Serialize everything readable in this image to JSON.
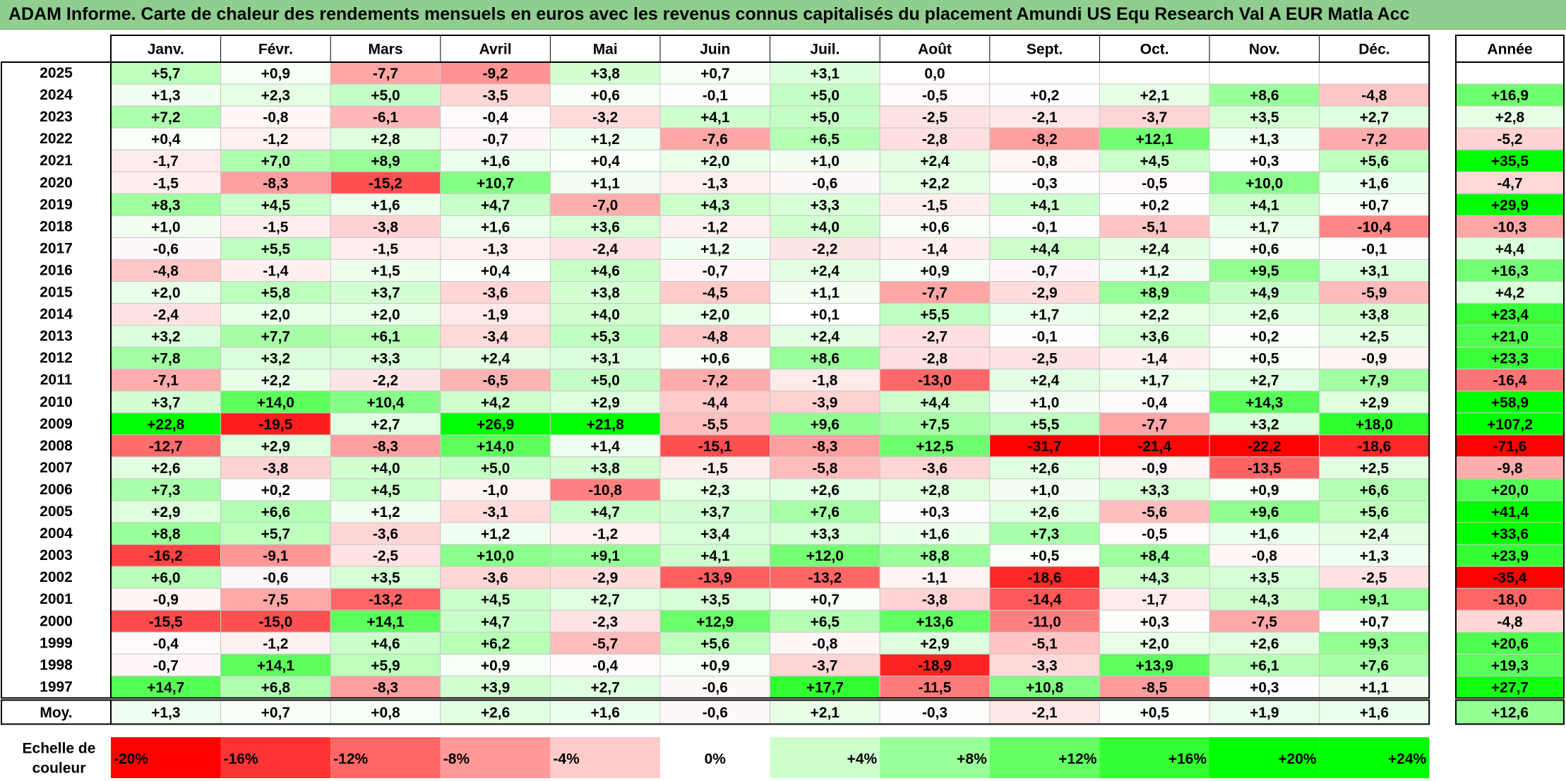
{
  "title": "ADAM Informe. Carte de chaleur des rendements mensuels en euros avec les revenus connus capitalisés du placement Amundi US Equ Research Val A EUR Matla Acc",
  "chart_data": {
    "type": "heatmap",
    "months": [
      "Janv.",
      "Févr.",
      "Mars",
      "Avril",
      "Mai",
      "Juin",
      "Juil.",
      "Août",
      "Sept.",
      "Oct.",
      "Nov.",
      "Déc."
    ],
    "annual_header": "Année",
    "rows": [
      {
        "year": "2025",
        "values": [
          5.7,
          0.9,
          -7.7,
          -9.2,
          3.8,
          0.7,
          3.1,
          0.0,
          null,
          null,
          null,
          null
        ],
        "annual": null
      },
      {
        "year": "2024",
        "values": [
          1.3,
          2.3,
          5.0,
          -3.5,
          0.6,
          -0.1,
          5.0,
          -0.5,
          0.2,
          2.1,
          8.6,
          -4.8
        ],
        "annual": 16.9
      },
      {
        "year": "2023",
        "values": [
          7.2,
          -0.8,
          -6.1,
          -0.4,
          -3.2,
          4.1,
          5.0,
          -2.5,
          -2.1,
          -3.7,
          3.5,
          2.7
        ],
        "annual": 2.8
      },
      {
        "year": "2022",
        "values": [
          0.4,
          -1.2,
          2.8,
          -0.7,
          1.2,
          -7.6,
          6.5,
          -2.8,
          -8.2,
          12.1,
          1.3,
          -7.2
        ],
        "annual": -5.2
      },
      {
        "year": "2021",
        "values": [
          -1.7,
          7.0,
          8.9,
          1.6,
          0.4,
          2.0,
          1.0,
          2.4,
          -0.8,
          4.5,
          0.3,
          5.6
        ],
        "annual": 35.5
      },
      {
        "year": "2020",
        "values": [
          -1.5,
          -8.3,
          -15.2,
          10.7,
          1.1,
          -1.3,
          -0.6,
          2.2,
          -0.3,
          -0.5,
          10.0,
          1.6
        ],
        "annual": -4.7
      },
      {
        "year": "2019",
        "values": [
          8.3,
          4.5,
          1.6,
          4.7,
          -7.0,
          4.3,
          3.3,
          -1.5,
          4.1,
          0.2,
          4.1,
          0.7
        ],
        "annual": 29.9
      },
      {
        "year": "2018",
        "values": [
          1.0,
          -1.5,
          -3.8,
          1.6,
          3.6,
          -1.2,
          4.0,
          0.6,
          -0.1,
          -5.1,
          1.7,
          -10.4
        ],
        "annual": -10.3
      },
      {
        "year": "2017",
        "values": [
          -0.6,
          5.5,
          -1.5,
          -1.3,
          -2.4,
          1.2,
          -2.2,
          -1.4,
          4.4,
          2.4,
          0.6,
          -0.1
        ],
        "annual": 4.4
      },
      {
        "year": "2016",
        "values": [
          -4.8,
          -1.4,
          1.5,
          0.4,
          4.6,
          -0.7,
          2.4,
          0.9,
          -0.7,
          1.2,
          9.5,
          3.1
        ],
        "annual": 16.3
      },
      {
        "year": "2015",
        "values": [
          2.0,
          5.8,
          3.7,
          -3.6,
          3.8,
          -4.5,
          1.1,
          -7.7,
          -2.9,
          8.9,
          4.9,
          -5.9
        ],
        "annual": 4.2
      },
      {
        "year": "2014",
        "values": [
          -2.4,
          2.0,
          2.0,
          -1.9,
          4.0,
          2.0,
          0.1,
          5.5,
          1.7,
          2.2,
          2.6,
          3.8
        ],
        "annual": 23.4
      },
      {
        "year": "2013",
        "values": [
          3.2,
          7.7,
          6.1,
          -3.4,
          5.3,
          -4.8,
          2.4,
          -2.7,
          -0.1,
          3.6,
          0.2,
          2.5
        ],
        "annual": 21.0
      },
      {
        "year": "2012",
        "values": [
          7.8,
          3.2,
          3.3,
          2.4,
          3.1,
          0.6,
          8.6,
          -2.8,
          -2.5,
          -1.4,
          0.5,
          -0.9
        ],
        "annual": 23.3
      },
      {
        "year": "2011",
        "values": [
          -7.1,
          2.2,
          -2.2,
          -6.5,
          5.0,
          -7.2,
          -1.8,
          -13.0,
          2.4,
          1.7,
          2.7,
          7.9
        ],
        "annual": -16.4
      },
      {
        "year": "2010",
        "values": [
          3.7,
          14.0,
          10.4,
          4.2,
          2.9,
          -4.4,
          -3.9,
          4.4,
          1.0,
          -0.4,
          14.3,
          2.9
        ],
        "annual": 58.9
      },
      {
        "year": "2009",
        "values": [
          22.8,
          -19.5,
          2.7,
          26.9,
          21.8,
          -5.5,
          9.6,
          7.5,
          5.5,
          -7.7,
          3.2,
          18.0
        ],
        "annual": 107.2
      },
      {
        "year": "2008",
        "values": [
          -12.7,
          2.9,
          -8.3,
          14.0,
          1.4,
          -15.1,
          -8.3,
          12.5,
          -31.7,
          -21.4,
          -22.2,
          -18.6
        ],
        "annual": -71.6
      },
      {
        "year": "2007",
        "values": [
          2.6,
          -3.8,
          4.0,
          5.0,
          3.8,
          -1.5,
          -5.8,
          -3.6,
          2.6,
          -0.9,
          -13.5,
          2.5
        ],
        "annual": -9.8
      },
      {
        "year": "2006",
        "values": [
          7.3,
          0.2,
          4.5,
          -1.0,
          -10.8,
          2.3,
          2.6,
          2.8,
          1.0,
          3.3,
          0.9,
          6.6
        ],
        "annual": 20.0
      },
      {
        "year": "2005",
        "values": [
          2.9,
          6.6,
          1.2,
          -3.1,
          4.7,
          3.7,
          7.6,
          0.3,
          2.6,
          -5.6,
          9.6,
          5.6
        ],
        "annual": 41.4
      },
      {
        "year": "2004",
        "values": [
          8.8,
          5.7,
          -3.6,
          1.2,
          -1.2,
          3.4,
          3.3,
          1.6,
          7.3,
          -0.5,
          1.6,
          2.4
        ],
        "annual": 33.6
      },
      {
        "year": "2003",
        "values": [
          -16.2,
          -9.1,
          -2.5,
          10.0,
          9.1,
          4.1,
          12.0,
          8.8,
          0.5,
          8.4,
          -0.8,
          1.3
        ],
        "annual": 23.9
      },
      {
        "year": "2002",
        "values": [
          6.0,
          -0.6,
          3.5,
          -3.6,
          -2.9,
          -13.9,
          -13.2,
          -1.1,
          -18.6,
          4.3,
          3.5,
          -2.5
        ],
        "annual": -35.4
      },
      {
        "year": "2001",
        "values": [
          -0.9,
          -7.5,
          -13.2,
          4.5,
          2.7,
          3.5,
          0.7,
          -3.8,
          -14.4,
          -1.7,
          4.3,
          9.1
        ],
        "annual": -18.0
      },
      {
        "year": "2000",
        "values": [
          -15.5,
          -15.0,
          14.1,
          4.7,
          -2.3,
          12.9,
          6.5,
          13.6,
          -11.0,
          0.3,
          -7.5,
          0.7
        ],
        "annual": -4.8
      },
      {
        "year": "1999",
        "values": [
          -0.4,
          -1.2,
          4.6,
          6.2,
          -5.7,
          5.6,
          -0.8,
          2.9,
          -5.1,
          2.0,
          2.6,
          9.3
        ],
        "annual": 20.6
      },
      {
        "year": "1998",
        "values": [
          -0.7,
          14.1,
          5.9,
          0.9,
          -0.4,
          0.9,
          -3.7,
          -18.9,
          -3.3,
          13.9,
          6.1,
          7.6
        ],
        "annual": 19.3
      },
      {
        "year": "1997",
        "values": [
          14.7,
          6.8,
          -8.3,
          3.9,
          2.7,
          -0.6,
          17.7,
          -11.5,
          10.8,
          -8.5,
          0.3,
          1.1
        ],
        "annual": 27.7
      }
    ],
    "average": {
      "label": "Moy.",
      "values": [
        1.3,
        0.7,
        0.8,
        2.6,
        1.6,
        -0.6,
        2.1,
        -0.3,
        -2.1,
        0.5,
        1.9,
        1.6
      ],
      "annual": 12.6
    },
    "scale": {
      "label_line1": "Echelle de",
      "label_line2": "couleur",
      "steps": [
        "-20%",
        "-16%",
        "-12%",
        "-8%",
        "-4%",
        "0%",
        "+4%",
        "+8%",
        "+12%",
        "+16%",
        "+20%",
        "+24%"
      ],
      "step_values": [
        -20,
        -16,
        -12,
        -8,
        -4,
        0,
        4,
        8,
        12,
        16,
        20,
        24
      ]
    },
    "colors": {
      "negative": "#ff0000",
      "zero": "#ffffff",
      "positive": "#00ff00",
      "title_bg": "#8fce8f"
    }
  }
}
